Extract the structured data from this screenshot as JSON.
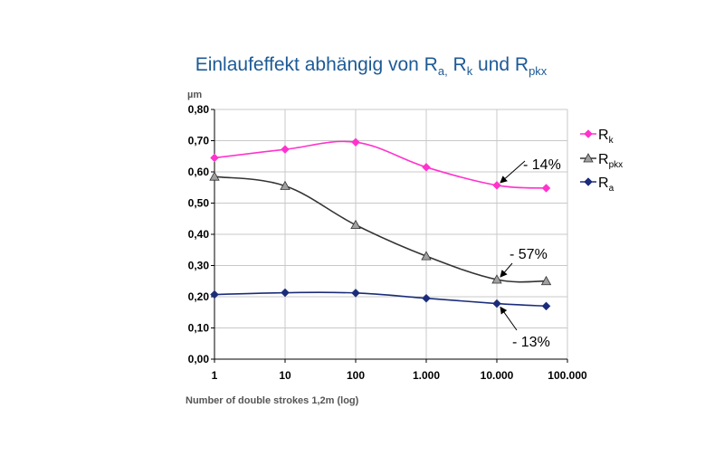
{
  "chart_data": {
    "type": "line",
    "title": {
      "main": "Einlaufeffekt abhängig von R",
      "a": "a,",
      "r2": " R",
      "k": "k",
      "und": " und R",
      "pkx": "pkx"
    },
    "ylabel": "µm",
    "xlabel": "Number of double strokes 1,2m (log)",
    "x_scale": "log",
    "x": [
      1,
      10,
      100,
      1000,
      10000,
      50000
    ],
    "x_ticks": [
      {
        "value": 1,
        "label": "1"
      },
      {
        "value": 10,
        "label": "10"
      },
      {
        "value": 100,
        "label": "100"
      },
      {
        "value": 1000,
        "label": "1.000"
      },
      {
        "value": 10000,
        "label": "10.000"
      },
      {
        "value": 100000,
        "label": "100.000"
      }
    ],
    "ylim": [
      0,
      0.8
    ],
    "y_ticks": [
      {
        "value": 0,
        "label": "0,00"
      },
      {
        "value": 0.1,
        "label": "0,10"
      },
      {
        "value": 0.2,
        "label": "0,20"
      },
      {
        "value": 0.3,
        "label": "0,30"
      },
      {
        "value": 0.4,
        "label": "0,40"
      },
      {
        "value": 0.5,
        "label": "0,50"
      },
      {
        "value": 0.6,
        "label": "0,60"
      },
      {
        "value": 0.7,
        "label": "0,70"
      },
      {
        "value": 0.8,
        "label": "0,80"
      }
    ],
    "grid": true,
    "legend_position": "right",
    "series": [
      {
        "id": "rk",
        "name": "R",
        "sub": "k",
        "color": "#ff33cc",
        "marker": "diamond",
        "values": [
          0.645,
          0.672,
          0.695,
          0.615,
          0.557,
          0.548
        ]
      },
      {
        "id": "rpkx",
        "name": "R",
        "sub": "pkx",
        "color": "#333333",
        "marker_fill": "#a0a0a0",
        "marker": "triangle",
        "values": [
          0.585,
          0.555,
          0.43,
          0.33,
          0.255,
          0.25
        ]
      },
      {
        "id": "ra",
        "name": "R",
        "sub": "a",
        "color": "#1b2d7a",
        "marker": "diamond",
        "values": [
          0.207,
          0.213,
          0.212,
          0.195,
          0.178,
          0.17
        ]
      }
    ],
    "annotations": [
      {
        "text": "- 14%",
        "series": "rk",
        "point_index": 4
      },
      {
        "text": "- 57%",
        "series": "rpkx",
        "point_index": 4
      },
      {
        "text": "- 13%",
        "series": "ra",
        "point_index": 4
      }
    ]
  }
}
